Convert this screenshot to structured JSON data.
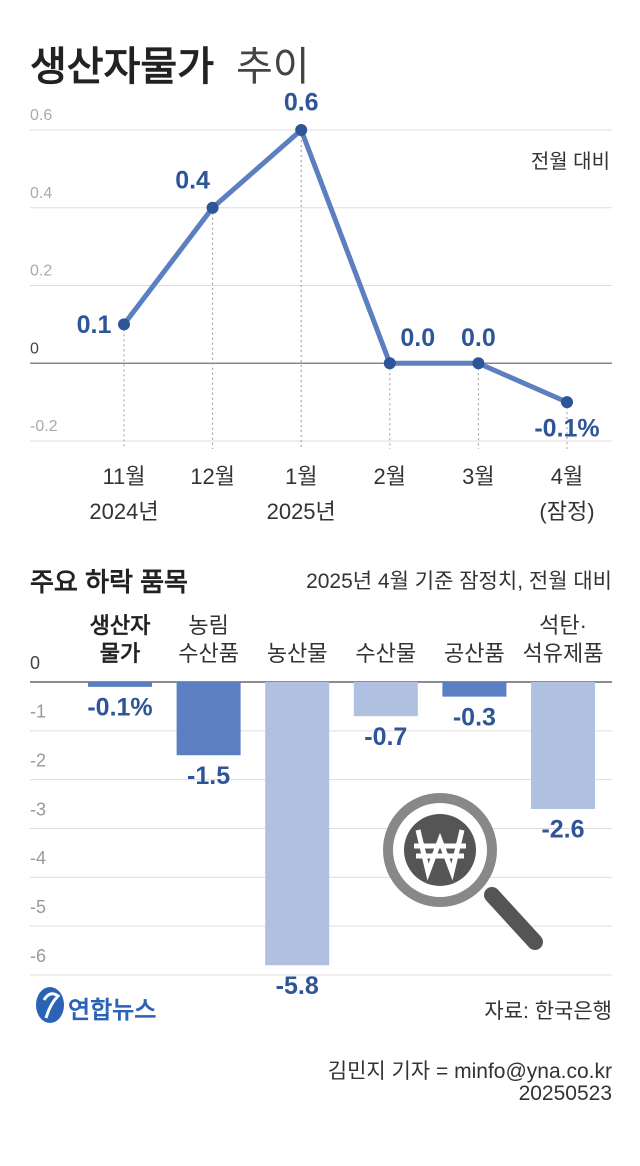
{
  "chart_data": [
    {
      "type": "line",
      "title": "생산자물가",
      "title_suffix": "추이",
      "annotation": "전월 대비",
      "categories": [
        "11월",
        "12월",
        "1월",
        "2월",
        "3월",
        "4월"
      ],
      "category_sublabels": [
        "2024년",
        null,
        "2025년",
        null,
        null,
        "(잠정)"
      ],
      "values": [
        0.1,
        0.4,
        0.6,
        0.0,
        0.0,
        -0.1
      ],
      "value_labels": [
        "0.1",
        "0.4",
        "0.6",
        "0.0",
        "0.0",
        "-0.1%"
      ],
      "color": "#5b7fc0",
      "label_color": "#2d5597",
      "ylim": [
        -0.2,
        0.6
      ],
      "yticks": [
        0.6,
        0.4,
        0.2,
        0,
        -0.2
      ],
      "grid": true
    },
    {
      "type": "bar",
      "title": "주요 하락 품목",
      "subtitle": "2025년 4월 기준 잠정치, 전월 대비",
      "categories": [
        "생산자\n물가",
        "농림\n수산품",
        "농산물",
        "수산물",
        "공산품",
        "석탄·\n석유제품"
      ],
      "values": [
        -0.1,
        -1.5,
        -5.8,
        -0.7,
        -0.3,
        -2.6
      ],
      "value_labels": [
        "-0.1%",
        "-1.5",
        "-5.8",
        "-0.7",
        "-0.3",
        "-2.6"
      ],
      "colors": [
        "#5b7fc0",
        "#5b7fc0",
        "#afc0e0",
        "#afc0e0",
        "#5b7fc0",
        "#afc0e0"
      ],
      "label_color": "#2d5597",
      "ylim": [
        -6,
        0
      ],
      "yticks": [
        0,
        -1,
        -2,
        -3,
        -4,
        -5,
        -6
      ],
      "grid": true
    }
  ],
  "footer": {
    "logo": "연합뉴스",
    "source": "자료: 한국은행",
    "reporter": "김민지 기자 = minfo@yna.co.kr",
    "date": "20250523"
  }
}
